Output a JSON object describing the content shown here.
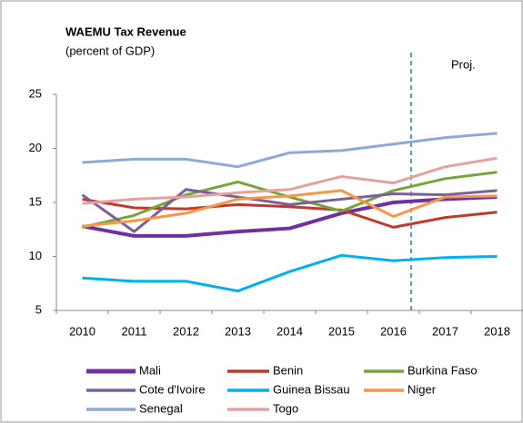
{
  "chart_data": {
    "type": "line",
    "title": "WAEMU Tax Revenue",
    "subtitle": "(percent of GDP)",
    "annotation": "Proj.",
    "categories": [
      "2010",
      "2011",
      "2012",
      "2013",
      "2014",
      "2015",
      "2016",
      "2017",
      "2018"
    ],
    "series": [
      {
        "name": "Mali",
        "color": "#7030a0",
        "values": [
          12.8,
          11.9,
          11.9,
          12.3,
          12.6,
          14.0,
          15.0,
          15.3,
          15.5
        ]
      },
      {
        "name": "Benin",
        "color": "#c0392b",
        "values": [
          15.3,
          14.5,
          14.4,
          14.8,
          14.6,
          14.3,
          12.7,
          13.6,
          14.1
        ]
      },
      {
        "name": "Burkina Faso",
        "color": "#77a33a",
        "values": [
          12.7,
          13.8,
          15.7,
          16.9,
          15.5,
          14.2,
          16.1,
          17.2,
          17.8
        ]
      },
      {
        "name": "Cote d'Ivoire",
        "color": "#7b5f99",
        "values": [
          15.7,
          12.3,
          16.2,
          15.5,
          14.8,
          15.3,
          15.8,
          15.7,
          16.1
        ]
      },
      {
        "name": "Guinea Bissau",
        "color": "#00b0f0",
        "values": [
          8.0,
          7.7,
          7.7,
          6.8,
          8.6,
          10.1,
          9.6,
          9.9,
          10.0
        ]
      },
      {
        "name": "Niger",
        "color": "#f79646",
        "values": [
          12.8,
          13.3,
          14.0,
          15.3,
          15.6,
          16.1,
          13.7,
          15.5,
          15.6
        ]
      },
      {
        "name": "Senegal",
        "color": "#8eaad4",
        "values": [
          18.7,
          19.0,
          19.0,
          18.3,
          19.6,
          19.8,
          20.4,
          21.0,
          21.4
        ]
      },
      {
        "name": "Togo",
        "color": "#e6a0a0",
        "values": [
          14.9,
          15.3,
          15.5,
          15.9,
          16.2,
          17.4,
          16.8,
          18.3,
          19.1
        ]
      }
    ],
    "ylim": [
      5,
      25
    ],
    "yticks": [
      5,
      10,
      15,
      20,
      25
    ]
  }
}
